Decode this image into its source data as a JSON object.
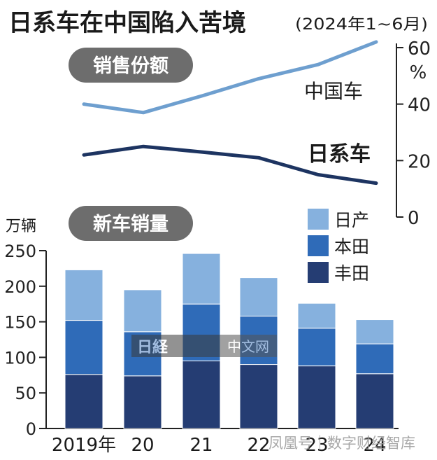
{
  "title": "日系车在中国陷入苦境",
  "subtitle": "(2024年1~6月)",
  "watermark_logo": "日経",
  "watermark_logo_suffix": "中文网",
  "watermark_footer": "凤凰号｜数字财经智库",
  "colors": {
    "title": "#1a1a1a",
    "pill_bg": "#6d6d6d",
    "pill_text": "#ffffff",
    "china_line": "#6e9fcf",
    "japan_line": "#1d3461",
    "nissan": "#86b1de",
    "honda": "#2f6bb8",
    "toyota": "#253d73",
    "axis": "#222222"
  },
  "chart_data": [
    {
      "type": "line",
      "title": "销售份额",
      "ylabel": "%",
      "ylim": [
        0,
        60
      ],
      "yticks": [
        0,
        20,
        40,
        60
      ],
      "x": [
        "2019年",
        "20",
        "21",
        "22",
        "23",
        "24"
      ],
      "series": [
        {
          "name": "中国车",
          "values": [
            40,
            37,
            43,
            49,
            54,
            62
          ]
        },
        {
          "name": "日系车",
          "values": [
            22,
            25,
            23,
            21,
            15,
            12
          ]
        }
      ]
    },
    {
      "type": "bar",
      "stacked": true,
      "title": "新车销量",
      "ylabel": "万辆",
      "ylim": [
        0,
        250
      ],
      "yticks": [
        0,
        50,
        100,
        150,
        200,
        250
      ],
      "categories": [
        "2019年",
        "20",
        "21",
        "22",
        "23",
        "24"
      ],
      "legend": [
        "日产",
        "本田",
        "丰田"
      ],
      "series": [
        {
          "name": "丰田",
          "values": [
            76,
            74,
            95,
            90,
            88,
            77
          ]
        },
        {
          "name": "本田",
          "values": [
            76,
            62,
            80,
            68,
            53,
            42
          ]
        },
        {
          "name": "日产",
          "values": [
            71,
            59,
            71,
            54,
            35,
            34
          ]
        }
      ]
    }
  ]
}
